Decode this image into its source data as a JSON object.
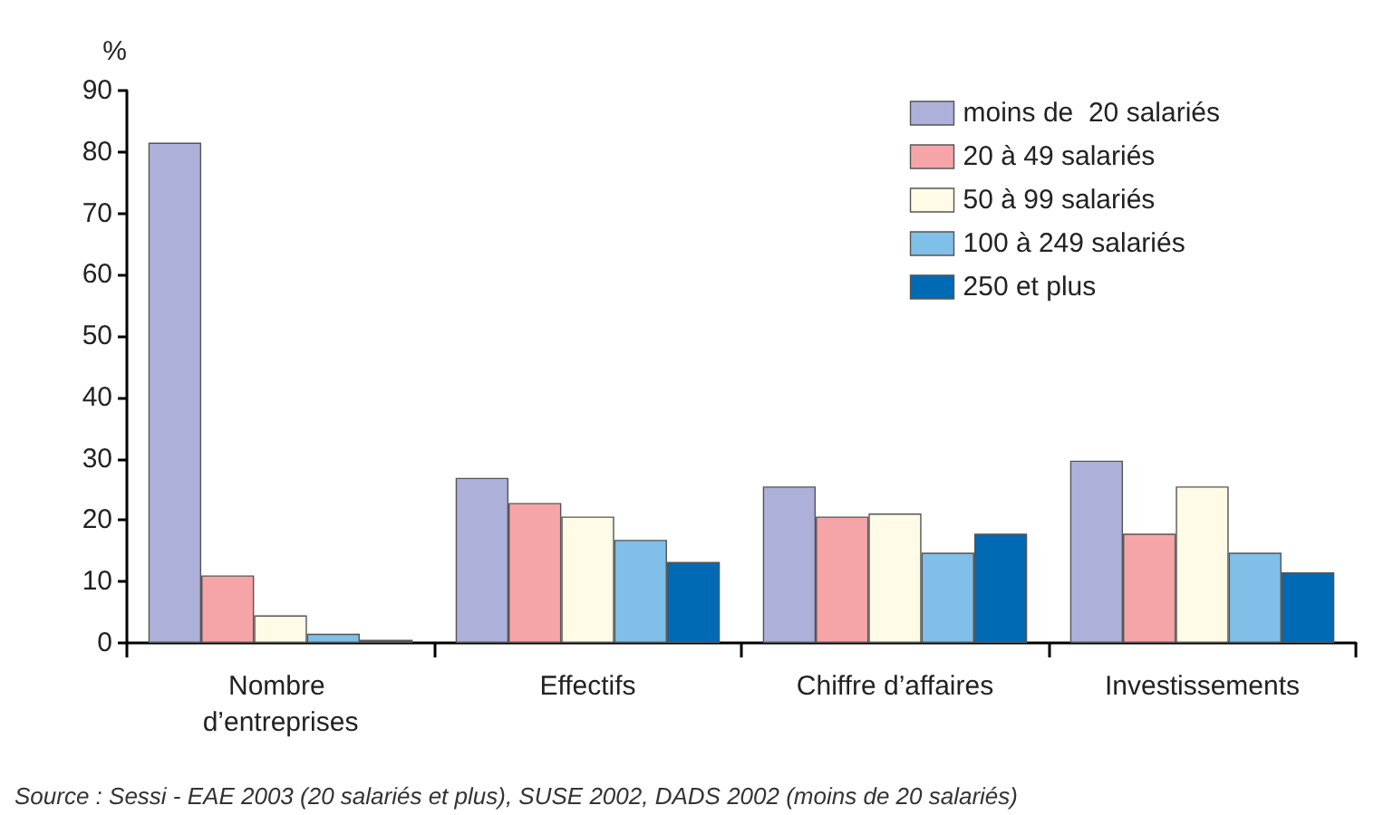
{
  "chart_data": {
    "type": "bar",
    "ylabel": "%",
    "categories": [
      "Nombre d’entreprises",
      "Effectifs",
      "Chiffre d’affaires",
      "Investissements"
    ],
    "series": [
      {
        "name": "moins de  20 salariés",
        "color": "#adb0d8",
        "values": [
          81.5,
          26.9,
          25.5,
          29.7
        ]
      },
      {
        "name": "20 à 49 salariés",
        "color": "#f5a5a8",
        "values": [
          11,
          22.8,
          20.6,
          17.8
        ]
      },
      {
        "name": "50 à 99 salariés",
        "color": "#fffbe6",
        "values": [
          4.5,
          20.6,
          21.1,
          25.5
        ]
      },
      {
        "name": "100 à 249 salariés",
        "color": "#7fbfe8",
        "values": [
          1.5,
          16.8,
          14.7,
          14.7
        ]
      },
      {
        "name": "250 et plus",
        "color": "#006ab5",
        "values": [
          0.5,
          13.2,
          17.8,
          11.5
        ]
      }
    ],
    "ylim": [
      0,
      90
    ],
    "yticks": [
      0,
      10,
      20,
      30,
      40,
      50,
      60,
      70,
      80,
      90
    ],
    "grid": false,
    "legend": "top right",
    "annotations": [
      "Source : Sessi - EAE 2003 (20 salariés et plus), SUSE 2002, DADS 2002 (moins de 20 salariés)"
    ]
  }
}
